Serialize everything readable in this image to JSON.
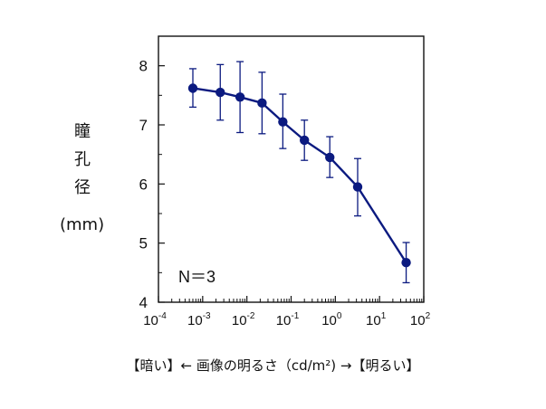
{
  "chart_data": {
    "type": "line",
    "xscale": "log",
    "xlim": [
      0.0001,
      100
    ],
    "ylim": [
      4,
      8.5
    ],
    "x_tick_labels": [
      {
        "base": "10",
        "exp": "-4"
      },
      {
        "base": "10",
        "exp": "-3"
      },
      {
        "base": "10",
        "exp": "-2"
      },
      {
        "base": "10",
        "exp": "-1"
      },
      {
        "base": "10",
        "exp": "0"
      },
      {
        "base": "10",
        "exp": "1"
      },
      {
        "base": "10",
        "exp": "2"
      }
    ],
    "y_ticks": [
      "4",
      "5",
      "6",
      "7",
      "8"
    ],
    "ylabel_chars": [
      "瞳",
      "孔",
      "径"
    ],
    "ylabel_unit": "(mm)",
    "xlabel": "【暗い】← 画像の明るさ（cd/m²) →【明るい】",
    "annotation": "N＝3",
    "grid": false,
    "series": [
      {
        "color": "#0b1a80",
        "points": [
          {
            "x": 0.0006,
            "y": 7.62,
            "err_low": 7.3,
            "err_high": 7.95
          },
          {
            "x": 0.0025,
            "y": 7.55,
            "err_low": 7.08,
            "err_high": 8.02
          },
          {
            "x": 0.007,
            "y": 7.47,
            "err_low": 6.87,
            "err_high": 8.07
          },
          {
            "x": 0.022,
            "y": 7.37,
            "err_low": 6.85,
            "err_high": 7.89
          },
          {
            "x": 0.065,
            "y": 7.05,
            "err_low": 6.6,
            "err_high": 7.52
          },
          {
            "x": 0.2,
            "y": 6.74,
            "err_low": 6.4,
            "err_high": 7.08
          },
          {
            "x": 0.75,
            "y": 6.45,
            "err_low": 6.11,
            "err_high": 6.8
          },
          {
            "x": 3.2,
            "y": 5.95,
            "err_low": 5.46,
            "err_high": 6.43
          },
          {
            "x": 40,
            "y": 4.67,
            "err_low": 4.33,
            "err_high": 5.01
          }
        ]
      }
    ]
  }
}
